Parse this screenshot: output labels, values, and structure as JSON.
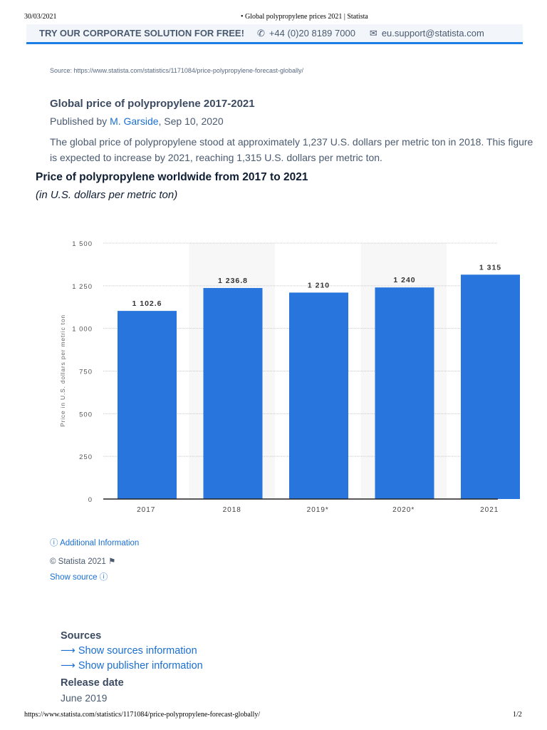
{
  "print_header": {
    "date": "30/03/2021",
    "title": "• Global polypropylene prices 2021 | Statista"
  },
  "banner": {
    "cta": "TRY OUR CORPORATE SOLUTION FOR FREE!",
    "phone": "+44 (0)20 8189 7000",
    "email": "eu.support@statista.com"
  },
  "source_line": "Source: https://www.statista.com/statistics/1171084/price-polypropylene-forecast-globally/",
  "article": {
    "title": "Global price of polypropylene 2017-2021",
    "published_prefix": "Published by ",
    "author": "M. Garside",
    "date": ", Sep 10, 2020",
    "description": "The global price of polypropylene stood at approximately 1,237 U.S. dollars per metric ton in 2018. This figure is expected to increase by 2021, reaching 1,315 U.S. dollars per metric ton."
  },
  "chart_data": {
    "type": "bar",
    "title": "Price of polypropylene worldwide from 2017 to 2021",
    "subtitle": "(in U.S. dollars per metric ton)",
    "ylabel": "Price in U.S. dollars per metric ton",
    "xlabel": "",
    "categories": [
      "2017",
      "2018",
      "2019*",
      "2020*",
      "2021"
    ],
    "values": [
      1102.6,
      1236.8,
      1210,
      1240,
      1315
    ],
    "value_labels": [
      "1 102.6",
      "1 236.8",
      "1 210",
      "1 240",
      "1 315"
    ],
    "ylim": [
      0,
      1500
    ],
    "yticks": [
      0,
      250,
      500,
      750,
      1000,
      1250,
      1500
    ],
    "ytick_labels": [
      "0",
      "250",
      "500",
      "750",
      "1 000",
      "1 250",
      "1 500"
    ],
    "grid": true,
    "bar_color": "#2876dd"
  },
  "chart_footer": {
    "additional_info": "Additional Information",
    "copyright": "© Statista 2021",
    "show_source": "Show source"
  },
  "sources": {
    "heading": "Sources",
    "show_sources": "Show sources information",
    "show_publisher": "Show publisher information",
    "release_heading": "Release date",
    "release_value": "June 2019"
  },
  "print_footer": {
    "url": "https://www.statista.com/statistics/1171084/price-polypropylene-forecast-globally/",
    "page": "1/2"
  }
}
